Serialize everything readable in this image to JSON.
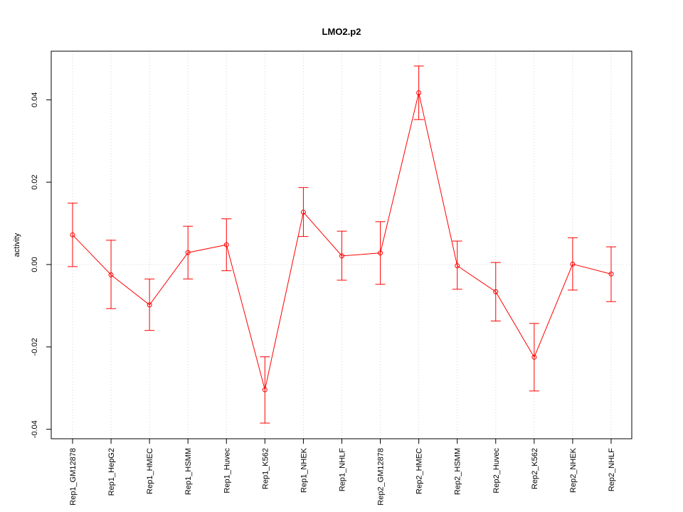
{
  "chart_data": {
    "type": "line",
    "title": "LMO2.p2",
    "xlabel": "",
    "ylabel": "activity",
    "categories": [
      "Rep1_GM12878",
      "Rep1_HepG2",
      "Rep1_HMEC",
      "Rep1_HSMM",
      "Rep1_Huvec",
      "Rep1_K562",
      "Rep1_NHEK",
      "Rep1_NHLF",
      "Rep2_GM12878",
      "Rep2_HMEC",
      "Rep2_HSMM",
      "Rep2_Huvec",
      "Rep2_K562",
      "Rep2_NHEK",
      "Rep2_NHLF"
    ],
    "series": [
      {
        "values": [
          0.0072,
          -0.0025,
          -0.0098,
          0.0029,
          0.0048,
          -0.0304,
          0.0127,
          0.0021,
          0.0028,
          0.0417,
          -0.0003,
          -0.0066,
          -0.0225,
          0.0001,
          -0.0023
        ],
        "upper": [
          0.0149,
          0.0059,
          -0.0035,
          0.0093,
          0.0111,
          -0.0224,
          0.0187,
          0.0081,
          0.0104,
          0.0482,
          0.0057,
          0.0005,
          -0.0143,
          0.0065,
          0.0043
        ],
        "lower": [
          -0.0005,
          -0.0107,
          -0.016,
          -0.0035,
          -0.0015,
          -0.0385,
          0.0068,
          -0.0038,
          -0.0048,
          0.0352,
          -0.006,
          -0.0137,
          -0.0307,
          -0.0062,
          -0.009
        ]
      }
    ],
    "yticks": [
      -0.04,
      -0.02,
      0.0,
      0.02,
      0.04
    ],
    "ytick_labels": [
      "-0.04",
      "-0.02",
      "0.00",
      "0.02",
      "0.04"
    ],
    "ylim": [
      -0.0423,
      0.0518
    ],
    "grid": true,
    "reference_line": 0,
    "colors": {
      "series": "#ff0000",
      "grid": "#d3d3d3",
      "axis": "#000000"
    }
  }
}
